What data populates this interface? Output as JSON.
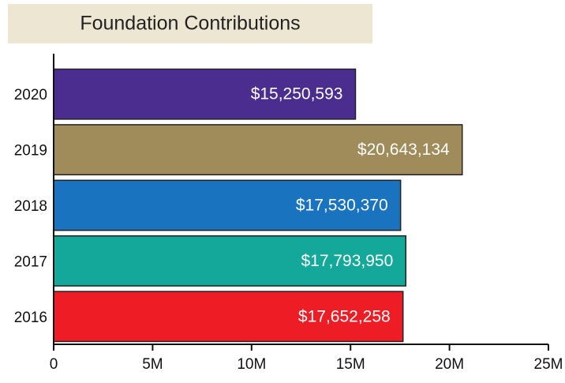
{
  "chart_data": {
    "type": "bar",
    "orientation": "horizontal",
    "title": "Foundation Contributions",
    "categories": [
      "2020",
      "2019",
      "2018",
      "2017",
      "2016"
    ],
    "values": [
      15250593,
      20643134,
      17530370,
      17793950,
      17652258
    ],
    "value_labels": [
      "$15,250,593",
      "$20,643,134",
      "$17,530,370",
      "$17,793,950",
      "$17,652,258"
    ],
    "colors": [
      "#4b2d8f",
      "#a08c5a",
      "#1a73bf",
      "#14a89a",
      "#ee1c25"
    ],
    "xlim": [
      0,
      25000000
    ],
    "xticks": [
      0,
      {
        "value": 5000000,
        "label": "5M"
      },
      {
        "value": 10000000,
        "label": "10M"
      },
      {
        "value": 15000000,
        "label": "15M"
      },
      {
        "value": 20000000,
        "label": "20M"
      },
      {
        "value": 25000000,
        "label": "25M"
      }
    ],
    "grid": false
  }
}
